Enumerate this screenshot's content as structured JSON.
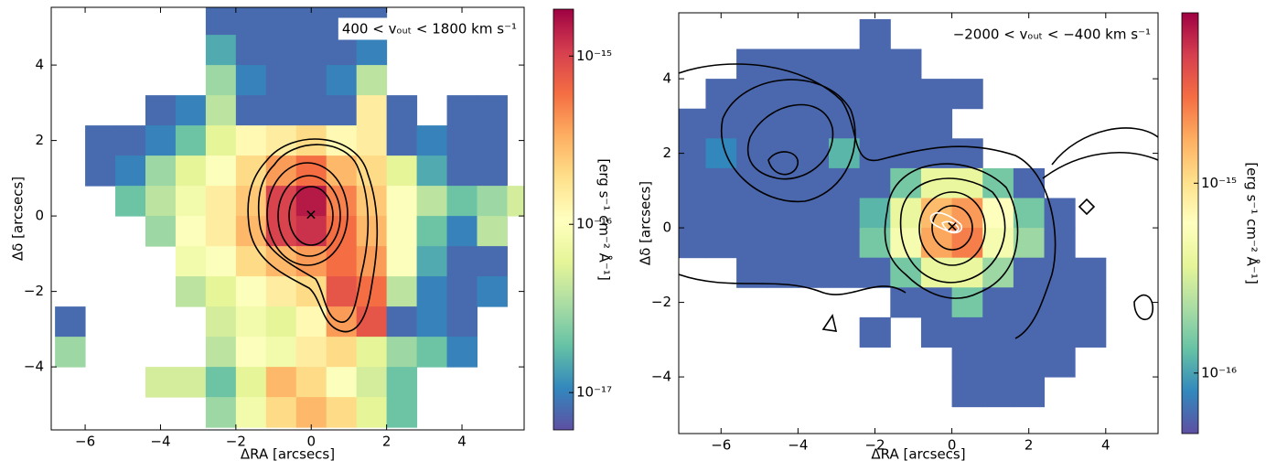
{
  "chart_data": [
    {
      "type": "heatmap",
      "annotation": "400 < vₒᵤₜ < 1800 km s⁻¹",
      "xlabel": "ΔRA [arcsecs]",
      "ylabel": "Δδ [arcsecs]",
      "xlim": [
        -6.9,
        5.65
      ],
      "ylim": [
        -5.67,
        5.53
      ],
      "xticks": [
        {
          "value": -6,
          "label": "−6"
        },
        {
          "value": -4,
          "label": "−4"
        },
        {
          "value": -2,
          "label": "−2"
        },
        0,
        2,
        4
      ],
      "yticks": [
        {
          "value": -4,
          "label": "−4"
        },
        {
          "value": -2,
          "label": "−2"
        },
        0,
        2,
        4
      ],
      "colormap": "Spectral_r",
      "colorbar": {
        "scale": "log",
        "clim": [
          6e-18,
          1.9e-15
        ],
        "label": "[erg s⁻¹ cm⁻² Å⁻¹]",
        "ticks": [
          {
            "value": 1e-17,
            "label": "10⁻¹⁷"
          },
          {
            "value": 1e-16,
            "label": "10⁻¹⁶"
          },
          {
            "value": 1e-15,
            "label": "10⁻¹⁵"
          }
        ]
      },
      "x": [
        -6.4,
        -5.6,
        -4.8,
        -4.0,
        -3.2,
        -2.4,
        -1.6,
        -0.8,
        0,
        0.8,
        1.6,
        2.4,
        3.2,
        4.0,
        4.8,
        5.6
      ],
      "y": [
        5.2,
        4.4,
        3.6,
        2.8,
        2.0,
        1.2,
        0.4,
        -0.4,
        -1.2,
        -2.0,
        -2.8,
        -3.6,
        -4.4,
        -5.2
      ],
      "z": [
        [
          null,
          null,
          null,
          null,
          null,
          8e-18,
          8e-18,
          8e-18,
          8e-18,
          8e-18,
          8e-18,
          null,
          null,
          null,
          null,
          null
        ],
        [
          null,
          null,
          null,
          null,
          null,
          1.5e-17,
          8e-18,
          8e-18,
          8e-18,
          8e-18,
          1e-17,
          null,
          null,
          null,
          null,
          null
        ],
        [
          null,
          null,
          null,
          null,
          null,
          3e-17,
          1e-17,
          8e-18,
          8e-18,
          1e-17,
          4e-17,
          null,
          null,
          null,
          null,
          null
        ],
        [
          null,
          null,
          null,
          8e-18,
          1e-17,
          4e-17,
          8e-18,
          8e-18,
          8e-18,
          8e-18,
          1.5e-16,
          8e-18,
          null,
          8e-18,
          8e-18,
          null
        ],
        [
          null,
          8e-18,
          8e-18,
          1e-17,
          2e-17,
          6e-17,
          1.2e-16,
          1.5e-16,
          2e-16,
          1.2e-16,
          1.5e-16,
          8e-18,
          1e-17,
          8e-18,
          8e-18,
          null
        ],
        [
          null,
          8e-18,
          1e-17,
          3e-17,
          6e-17,
          1e-16,
          2e-16,
          4e-16,
          6e-16,
          3e-16,
          2e-16,
          6e-17,
          1.5e-17,
          8e-18,
          8e-18,
          null
        ],
        [
          null,
          null,
          2e-17,
          4e-17,
          8e-17,
          1.5e-16,
          2.5e-16,
          1e-15,
          1.5e-15,
          5e-16,
          2.5e-16,
          1e-16,
          4e-17,
          2e-17,
          3e-17,
          5e-17
        ],
        [
          null,
          null,
          null,
          3e-17,
          1e-16,
          1.5e-16,
          3e-16,
          1e-15,
          1.2e-15,
          6e-16,
          3e-16,
          1e-16,
          2e-17,
          1e-17,
          4e-17,
          null
        ],
        [
          null,
          null,
          null,
          null,
          8e-17,
          1e-16,
          2e-16,
          3e-16,
          4e-16,
          6e-16,
          4e-16,
          1e-16,
          1.5e-17,
          8e-18,
          8e-18,
          null
        ],
        [
          null,
          null,
          null,
          null,
          4e-17,
          6e-17,
          1e-16,
          1.5e-16,
          2e-16,
          8e-16,
          6e-16,
          4e-17,
          1e-17,
          8e-18,
          1e-17,
          null
        ],
        [
          8e-18,
          null,
          null,
          null,
          null,
          5e-17,
          8e-17,
          6e-17,
          1.2e-16,
          4e-16,
          8e-16,
          8e-18,
          1e-17,
          8e-18,
          null,
          null
        ],
        [
          3e-17,
          null,
          null,
          null,
          null,
          4e-17,
          1e-16,
          8e-17,
          1.5e-16,
          2e-16,
          6e-17,
          3e-17,
          2e-17,
          1e-17,
          null,
          null
        ],
        [
          null,
          null,
          null,
          5e-17,
          5e-17,
          2e-17,
          6e-17,
          3e-16,
          2e-16,
          1e-16,
          5e-17,
          2e-17,
          null,
          null,
          null,
          null
        ],
        [
          null,
          null,
          null,
          null,
          null,
          3e-17,
          8e-17,
          2e-16,
          3e-16,
          2e-16,
          6e-17,
          2e-17,
          null,
          null,
          null,
          null
        ]
      ]
    },
    {
      "type": "heatmap",
      "annotation": "−2000 < vₒᵤₜ < −400 km s⁻¹",
      "xlabel": "ΔRA [arcsecs]",
      "ylabel": "Δδ [arcsecs]",
      "xlim": [
        -7.1,
        5.36
      ],
      "ylim": [
        -5.52,
        5.77
      ],
      "xticks": [
        {
          "value": -6,
          "label": "−6"
        },
        {
          "value": -4,
          "label": "−4"
        },
        {
          "value": -2,
          "label": "−2"
        },
        0,
        2,
        4
      ],
      "yticks": [
        {
          "value": -4,
          "label": "−4"
        },
        {
          "value": -2,
          "label": "−2"
        },
        0,
        2,
        4
      ],
      "colormap": "Spectral_r",
      "colorbar": {
        "scale": "log",
        "clim": [
          4.8e-17,
          7.9e-15
        ],
        "label": "[erg s⁻¹ cm⁻² Å⁻¹]",
        "ticks": [
          {
            "value": 1e-16,
            "label": "10⁻¹⁶"
          },
          {
            "value": 1e-15,
            "label": "10⁻¹⁵"
          }
        ]
      },
      "x": [
        -6.8,
        -6.0,
        -5.2,
        -4.4,
        -3.6,
        -2.8,
        -2.0,
        -1.2,
        -0.4,
        0.4,
        1.2,
        2.0,
        2.8,
        3.6,
        4.4,
        5.2
      ],
      "y": [
        5.2,
        4.4,
        3.6,
        2.8,
        2.0,
        1.2,
        0.4,
        -0.4,
        -1.2,
        -2.0,
        -2.8,
        -3.6,
        -4.4,
        -5.2
      ],
      "z": [
        [
          null,
          null,
          null,
          null,
          null,
          null,
          6e-17,
          null,
          null,
          null,
          null,
          null,
          null,
          null,
          null,
          null
        ],
        [
          null,
          null,
          6e-17,
          6e-17,
          6e-17,
          6e-17,
          6e-17,
          6e-17,
          null,
          null,
          null,
          null,
          null,
          null,
          null,
          null
        ],
        [
          null,
          6e-17,
          6e-17,
          6e-17,
          6e-17,
          6e-17,
          6e-17,
          6e-17,
          6e-17,
          6e-17,
          null,
          null,
          null,
          null,
          null,
          null
        ],
        [
          6e-17,
          6e-17,
          6e-17,
          6e-17,
          6e-17,
          6e-17,
          6e-17,
          6e-17,
          6e-17,
          null,
          null,
          null,
          null,
          null,
          null,
          null
        ],
        [
          6e-17,
          8e-17,
          6e-17,
          6e-17,
          6e-17,
          1.2e-16,
          6e-17,
          6e-17,
          6e-17,
          6e-17,
          null,
          null,
          null,
          null,
          null,
          null
        ],
        [
          6e-17,
          6e-17,
          6e-17,
          6e-17,
          6e-17,
          6e-17,
          6e-17,
          1.5e-16,
          4e-16,
          4e-16,
          1.5e-16,
          6e-17,
          null,
          null,
          null,
          null
        ],
        [
          6e-17,
          6e-17,
          6e-17,
          6e-17,
          6e-17,
          6e-17,
          1.2e-16,
          4e-16,
          1.5e-15,
          2e-15,
          6e-16,
          1.5e-16,
          6e-17,
          null,
          null,
          null
        ],
        [
          6e-17,
          6e-17,
          6e-17,
          6e-17,
          6e-17,
          6e-17,
          1.5e-16,
          5e-16,
          1.8e-15,
          2.5e-15,
          5e-16,
          2e-16,
          6e-17,
          null,
          null,
          null
        ],
        [
          null,
          null,
          6e-17,
          6e-17,
          6e-17,
          6e-17,
          6e-17,
          1.5e-16,
          4e-16,
          4e-16,
          2e-16,
          6e-17,
          6e-17,
          6e-17,
          null,
          null
        ],
        [
          null,
          null,
          null,
          null,
          null,
          null,
          null,
          6e-17,
          6e-17,
          1.5e-16,
          6e-17,
          6e-17,
          6e-17,
          6e-17,
          null,
          null
        ],
        [
          null,
          null,
          null,
          null,
          null,
          null,
          6e-17,
          null,
          6e-17,
          6e-17,
          6e-17,
          6e-17,
          6e-17,
          6e-17,
          null,
          null
        ],
        [
          null,
          null,
          null,
          null,
          null,
          null,
          null,
          null,
          null,
          6e-17,
          6e-17,
          6e-17,
          6e-17,
          null,
          null,
          null
        ],
        [
          null,
          null,
          null,
          null,
          null,
          null,
          null,
          null,
          null,
          6e-17,
          6e-17,
          6e-17,
          null,
          null,
          null,
          null
        ],
        [
          null,
          null,
          null,
          null,
          null,
          null,
          null,
          null,
          null,
          null,
          null,
          null,
          null,
          null,
          null,
          null
        ]
      ]
    }
  ]
}
